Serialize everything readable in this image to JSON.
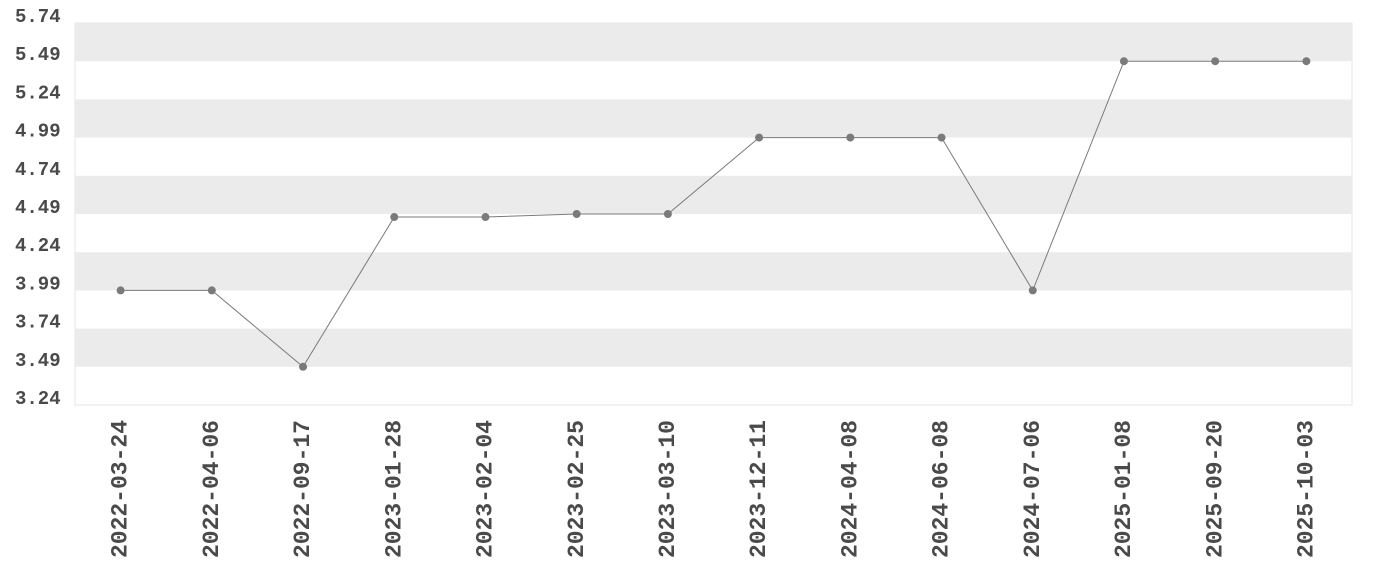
{
  "chart_data": {
    "type": "line",
    "categories": [
      "2022-03-24",
      "2022-04-06",
      "2022-09-17",
      "2023-01-28",
      "2023-02-04",
      "2023-02-25",
      "2023-03-10",
      "2023-12-11",
      "2024-04-08",
      "2024-06-08",
      "2024-07-06",
      "2025-01-08",
      "2025-09-20",
      "2025-10-03"
    ],
    "values": [
      3.99,
      3.99,
      3.49,
      4.47,
      4.47,
      4.49,
      4.49,
      4.99,
      4.99,
      4.99,
      3.99,
      5.49,
      5.49,
      5.49
    ],
    "color": "#7a7a7a",
    "ylim": [
      3.24,
      5.74
    ],
    "yticks": [
      3.24,
      3.49,
      3.74,
      3.99,
      4.24,
      4.49,
      4.74,
      4.99,
      5.24,
      5.49,
      5.74
    ],
    "grid": true
  }
}
